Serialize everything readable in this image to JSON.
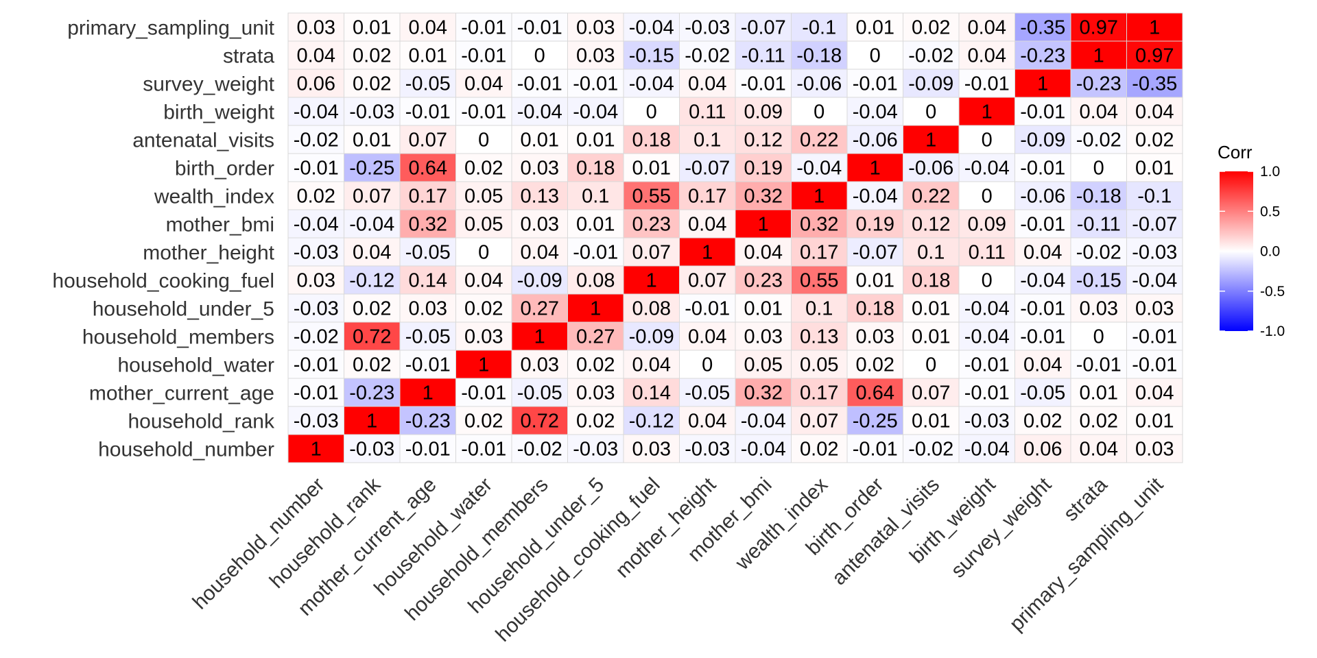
{
  "chart_data": {
    "type": "heatmap",
    "variables": [
      "household_number",
      "household_rank",
      "mother_current_age",
      "household_water",
      "household_members",
      "household_under_5",
      "household_cooking_fuel",
      "mother_height",
      "mother_bmi",
      "wealth_index",
      "birth_order",
      "antenatal_visits",
      "birth_weight",
      "survey_weight",
      "strata",
      "primary_sampling_unit"
    ],
    "rows": [
      {
        "name": "primary_sampling_unit",
        "values": [
          "0.03",
          "0.01",
          "0.04",
          "-0.01",
          "-0.01",
          "0.03",
          "-0.04",
          "-0.03",
          "-0.07",
          "-0.1",
          "0.01",
          "0.02",
          "0.04",
          "-0.35",
          "0.97",
          "1"
        ]
      },
      {
        "name": "strata",
        "values": [
          "0.04",
          "0.02",
          "0.01",
          "-0.01",
          "0",
          "0.03",
          "-0.15",
          "-0.02",
          "-0.11",
          "-0.18",
          "0",
          "-0.02",
          "0.04",
          "-0.23",
          "1",
          "0.97"
        ]
      },
      {
        "name": "survey_weight",
        "values": [
          "0.06",
          "0.02",
          "-0.05",
          "0.04",
          "-0.01",
          "-0.01",
          "-0.04",
          "0.04",
          "-0.01",
          "-0.06",
          "-0.01",
          "-0.09",
          "-0.01",
          "1",
          "-0.23",
          "-0.35"
        ]
      },
      {
        "name": "birth_weight",
        "values": [
          "-0.04",
          "-0.03",
          "-0.01",
          "-0.01",
          "-0.04",
          "-0.04",
          "0",
          "0.11",
          "0.09",
          "0",
          "-0.04",
          "0",
          "1",
          "-0.01",
          "0.04",
          "0.04"
        ]
      },
      {
        "name": "antenatal_visits",
        "values": [
          "-0.02",
          "0.01",
          "0.07",
          "0",
          "0.01",
          "0.01",
          "0.18",
          "0.1",
          "0.12",
          "0.22",
          "-0.06",
          "1",
          "0",
          "-0.09",
          "-0.02",
          "0.02"
        ]
      },
      {
        "name": "birth_order",
        "values": [
          "-0.01",
          "-0.25",
          "0.64",
          "0.02",
          "0.03",
          "0.18",
          "0.01",
          "-0.07",
          "0.19",
          "-0.04",
          "1",
          "-0.06",
          "-0.04",
          "-0.01",
          "0",
          "0.01"
        ]
      },
      {
        "name": "wealth_index",
        "values": [
          "0.02",
          "0.07",
          "0.17",
          "0.05",
          "0.13",
          "0.1",
          "0.55",
          "0.17",
          "0.32",
          "1",
          "-0.04",
          "0.22",
          "0",
          "-0.06",
          "-0.18",
          "-0.1"
        ]
      },
      {
        "name": "mother_bmi",
        "values": [
          "-0.04",
          "-0.04",
          "0.32",
          "0.05",
          "0.03",
          "0.01",
          "0.23",
          "0.04",
          "1",
          "0.32",
          "0.19",
          "0.12",
          "0.09",
          "-0.01",
          "-0.11",
          "-0.07"
        ]
      },
      {
        "name": "mother_height",
        "values": [
          "-0.03",
          "0.04",
          "-0.05",
          "0",
          "0.04",
          "-0.01",
          "0.07",
          "1",
          "0.04",
          "0.17",
          "-0.07",
          "0.1",
          "0.11",
          "0.04",
          "-0.02",
          "-0.03"
        ]
      },
      {
        "name": "household_cooking_fuel",
        "values": [
          "0.03",
          "-0.12",
          "0.14",
          "0.04",
          "-0.09",
          "0.08",
          "1",
          "0.07",
          "0.23",
          "0.55",
          "0.01",
          "0.18",
          "0",
          "-0.04",
          "-0.15",
          "-0.04"
        ]
      },
      {
        "name": "household_under_5",
        "values": [
          "-0.03",
          "0.02",
          "0.03",
          "0.02",
          "0.27",
          "1",
          "0.08",
          "-0.01",
          "0.01",
          "0.1",
          "0.18",
          "0.01",
          "-0.04",
          "-0.01",
          "0.03",
          "0.03"
        ]
      },
      {
        "name": "household_members",
        "values": [
          "-0.02",
          "0.72",
          "-0.05",
          "0.03",
          "1",
          "0.27",
          "-0.09",
          "0.04",
          "0.03",
          "0.13",
          "0.03",
          "0.01",
          "-0.04",
          "-0.01",
          "0",
          "-0.01"
        ]
      },
      {
        "name": "household_water",
        "values": [
          "-0.01",
          "0.02",
          "-0.01",
          "1",
          "0.03",
          "0.02",
          "0.04",
          "0",
          "0.05",
          "0.05",
          "0.02",
          "0",
          "-0.01",
          "0.04",
          "-0.01",
          "-0.01"
        ]
      },
      {
        "name": "mother_current_age",
        "values": [
          "-0.01",
          "-0.23",
          "1",
          "-0.01",
          "-0.05",
          "0.03",
          "0.14",
          "-0.05",
          "0.32",
          "0.17",
          "0.64",
          "0.07",
          "-0.01",
          "-0.05",
          "0.01",
          "0.04"
        ]
      },
      {
        "name": "household_rank",
        "values": [
          "-0.03",
          "1",
          "-0.23",
          "0.02",
          "0.72",
          "0.02",
          "-0.12",
          "0.04",
          "-0.04",
          "0.07",
          "-0.25",
          "0.01",
          "-0.03",
          "0.02",
          "0.02",
          "0.01"
        ]
      },
      {
        "name": "household_number",
        "values": [
          "1",
          "-0.03",
          "-0.01",
          "-0.01",
          "-0.02",
          "-0.03",
          "0.03",
          "-0.03",
          "-0.04",
          "0.02",
          "-0.01",
          "-0.02",
          "-0.04",
          "0.06",
          "0.04",
          "0.03"
        ]
      }
    ],
    "legend": {
      "title": "Corr",
      "ticks": [
        "1.0",
        "0.5",
        "0.0",
        "-0.5",
        "-1.0"
      ],
      "range": [
        -1,
        1
      ],
      "placement": "right"
    },
    "colors": {
      "low": "#0000ff",
      "mid": "#ffffff",
      "high": "#ff0000",
      "grid": "#d9d9d9"
    },
    "xlabel": "",
    "ylabel": "",
    "title": ""
  }
}
